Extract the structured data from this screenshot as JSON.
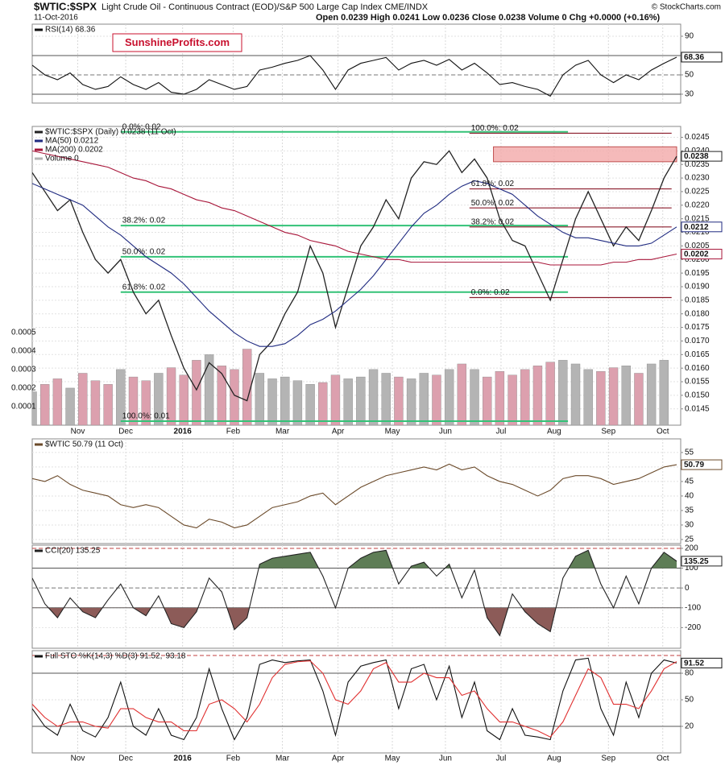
{
  "chart_data": [
    {
      "type": "line",
      "title": "$WTIC:$SPX",
      "subtitle": "Light Crude Oil - Continuous Contract (EOD)/S&P 500 Large Cap Index CME/INDX",
      "date": "11-Oct-2016",
      "quote": "Open 0.0239 High 0.0241 Low 0.0236 Close 0.0238 Volume 0 Chg +0.0000 (+0.16%)",
      "credit": "© StockCharts.com",
      "xlim": [
        0,
        51
      ],
      "xticks": [
        {
          "value": 3.6,
          "label": "Nov"
        },
        {
          "value": 7.4,
          "label": "Dec"
        },
        {
          "value": 11.9,
          "label": "2016"
        },
        {
          "value": 15.9,
          "label": "Feb"
        },
        {
          "value": 19.8,
          "label": "Mar"
        },
        {
          "value": 24.2,
          "label": "Apr"
        },
        {
          "value": 28.5,
          "label": "May"
        },
        {
          "value": 32.7,
          "label": "Jun"
        },
        {
          "value": 37.1,
          "label": "Jul"
        },
        {
          "value": 41.3,
          "label": "Aug"
        },
        {
          "value": 45.6,
          "label": "Sep"
        },
        {
          "value": 49.9,
          "label": "Oct"
        }
      ],
      "ylim": [
        0.0139,
        0.0249
      ],
      "yticks": [
        0.0145,
        {
          "value": 0.015,
          "label": "0.0150"
        },
        0.0155,
        {
          "value": 0.016,
          "label": "0.0160"
        },
        0.0165,
        {
          "value": 0.017,
          "label": "0.0170"
        },
        0.0175,
        {
          "value": 0.018,
          "label": "0.0180"
        },
        0.0185,
        {
          "value": 0.019,
          "label": "0.0190"
        },
        0.0195,
        {
          "value": 0.02,
          "label": "0.0200"
        },
        0.0205,
        {
          "value": 0.021,
          "label": "0.0210"
        },
        0.0215,
        {
          "value": 0.022,
          "label": "0.0220"
        },
        0.0225,
        {
          "value": 0.023,
          "label": "0.0230"
        },
        0.0235,
        {
          "value": 0.024,
          "label": "0.0240"
        },
        0.0245
      ],
      "y2lim": [
        0,
        0.00161
      ],
      "y2ticks": [
        0.0001,
        0.0002,
        0.0003,
        0.0004,
        0.0005
      ],
      "series": [
        {
          "name": "$WTIC:$SPX (Daily) 0.0238 (11 Oct)",
          "color": "#222222",
          "value_box": true,
          "values": [
            0.0232,
            0.0225,
            0.0218,
            0.0222,
            0.021,
            0.02,
            0.0195,
            0.02,
            0.0188,
            0.018,
            0.0185,
            0.0172,
            0.016,
            0.0152,
            0.0162,
            0.0158,
            0.015,
            0.0148,
            0.0165,
            0.017,
            0.018,
            0.0188,
            0.0205,
            0.0195,
            0.0175,
            0.019,
            0.0205,
            0.0212,
            0.0222,
            0.0215,
            0.023,
            0.0236,
            0.0235,
            0.024,
            0.0232,
            0.0237,
            0.023,
            0.0215,
            0.0207,
            0.0205,
            0.0195,
            0.0185,
            0.02,
            0.0215,
            0.0225,
            0.0215,
            0.0205,
            0.0212,
            0.0207,
            0.0218,
            0.023,
            0.0238
          ]
        },
        {
          "name": "MA(50) 0.0212",
          "color": "#1f2a80",
          "value_box": true,
          "values": [
            0.0228,
            0.0226,
            0.0224,
            0.0222,
            0.022,
            0.0216,
            0.0212,
            0.0209,
            0.0205,
            0.0201,
            0.0198,
            0.0195,
            0.0191,
            0.0186,
            0.0181,
            0.0177,
            0.0173,
            0.017,
            0.0168,
            0.0168,
            0.0169,
            0.0172,
            0.0176,
            0.0178,
            0.0181,
            0.0185,
            0.0189,
            0.0194,
            0.02,
            0.0206,
            0.0212,
            0.0217,
            0.022,
            0.0224,
            0.0227,
            0.0229,
            0.0228,
            0.0226,
            0.0224,
            0.022,
            0.0216,
            0.0213,
            0.021,
            0.0208,
            0.0208,
            0.0207,
            0.0206,
            0.0205,
            0.0205,
            0.0206,
            0.0209,
            0.0212
          ]
        },
        {
          "name": "MA(200) 0.0202",
          "color": "#a8163a",
          "value_box": true,
          "values": [
            0.024,
            0.0239,
            0.0238,
            0.0237,
            0.0236,
            0.0235,
            0.0234,
            0.0232,
            0.023,
            0.0229,
            0.0227,
            0.0226,
            0.0224,
            0.0222,
            0.0221,
            0.0219,
            0.0218,
            0.0216,
            0.0214,
            0.0212,
            0.021,
            0.0209,
            0.0207,
            0.0206,
            0.0205,
            0.0203,
            0.0202,
            0.0201,
            0.02,
            0.02,
            0.0199,
            0.0199,
            0.0199,
            0.0199,
            0.0199,
            0.0199,
            0.0199,
            0.0199,
            0.0199,
            0.0199,
            0.0199,
            0.0198,
            0.0198,
            0.0198,
            0.0198,
            0.0198,
            0.0199,
            0.0199,
            0.02,
            0.02,
            0.0201,
            0.0202
          ]
        },
        {
          "name": "Volume 0",
          "color": "#b4b4b4",
          "down_color": "#dca0ae",
          "axis": "y2",
          "values": [
            0.00018,
            0.00022,
            0.00025,
            0.0002,
            0.00028,
            0.00024,
            0.00022,
            0.0003,
            0.00026,
            0.00024,
            0.00028,
            0.00031,
            0.00027,
            0.00035,
            0.00038,
            0.00032,
            0.0003,
            0.00041,
            0.00028,
            0.00025,
            0.00026,
            0.00024,
            0.00022,
            0.00023,
            0.00027,
            0.00025,
            0.00026,
            0.0003,
            0.00028,
            0.00026,
            0.00025,
            0.00028,
            0.00027,
            0.0003,
            0.00033,
            0.0003,
            0.00026,
            0.00029,
            0.00027,
            0.0003,
            0.00032,
            0.00034,
            0.00035,
            0.00033,
            0.0003,
            0.00029,
            0.00031,
            0.00032,
            0.00028,
            0.00033,
            0.00035,
            0
          ]
        }
      ],
      "zones": [
        {
          "from": 36.5,
          "to": 51,
          "low": 0.0236,
          "high": 0.02415,
          "color": "#f2a9a9"
        }
      ],
      "fib_groups": [
        {
          "color": "#33c277",
          "from": 7,
          "to": 42.4,
          "levels": [
            {
              "label": "0.0%: 0.02",
              "value": 0.0247
            },
            {
              "label": "38.2%: 0.02",
              "value": 0.02125
            },
            {
              "label": "50.0%: 0.02",
              "value": 0.0201
            },
            {
              "label": "61.8%: 0.02",
              "value": 0.0188
            },
            {
              "label": "100.0%: 0.01",
              "value": 0.01405
            }
          ]
        },
        {
          "color": "#8a1a2a",
          "from": 34.6,
          "to": 50.6,
          "levels": [
            {
              "label": "100.0%: 0.02",
              "value": 0.02465
            },
            {
              "label": "61.8%: 0.02",
              "value": 0.0226
            },
            {
              "label": "50.0%: 0.02",
              "value": 0.0219
            },
            {
              "label": "38.2%: 0.02",
              "value": 0.0212
            },
            {
              "label": "0.0%: 0.02",
              "value": 0.0186
            }
          ]
        }
      ]
    },
    {
      "type": "line",
      "title": "RSI(14) 68.36",
      "watermark": "SunshineProfits.com",
      "ylim": [
        20.8,
        102.5
      ],
      "yticks": [
        30,
        50,
        70,
        90
      ],
      "ref_lines": [
        {
          "value": 70,
          "dash": false,
          "color": "#555555"
        },
        {
          "value": 50,
          "dash": true,
          "color": "#777777"
        },
        {
          "value": 30,
          "dash": false,
          "color": "#555555"
        }
      ],
      "series": [
        {
          "color": "#111111",
          "value_box": true,
          "values": [
            60,
            50,
            45,
            52,
            40,
            35,
            38,
            48,
            40,
            35,
            42,
            32,
            30,
            35,
            45,
            40,
            35,
            38,
            55,
            58,
            62,
            65,
            70,
            55,
            35,
            55,
            62,
            65,
            68,
            55,
            62,
            65,
            60,
            66,
            55,
            62,
            52,
            40,
            42,
            38,
            35,
            28,
            50,
            60,
            65,
            50,
            42,
            50,
            45,
            55,
            62,
            68.36
          ]
        }
      ]
    },
    {
      "type": "line",
      "title": "$WTIC 50.79 (11 Oct)",
      "ylim": [
        23.6,
        59.7
      ],
      "yticks": [
        25,
        30,
        35,
        40,
        45,
        50,
        55
      ],
      "series": [
        {
          "color": "#6b4a2a",
          "value_box": true,
          "values": [
            46,
            45,
            47,
            44,
            42,
            41,
            40,
            37,
            36,
            37,
            36,
            33,
            30,
            29,
            32,
            31,
            29,
            30,
            33,
            36,
            37,
            38,
            40,
            41,
            37,
            40,
            43,
            45,
            47,
            48,
            49,
            50,
            49,
            51,
            49,
            50,
            47,
            45,
            44,
            42,
            40,
            42,
            46,
            47,
            47,
            46,
            44,
            45,
            46,
            48,
            50,
            50.79
          ]
        }
      ]
    },
    {
      "type": "line",
      "title": "CCI(20) 135.25",
      "ylim": [
        -304,
        216
      ],
      "yticks": [
        -200,
        -100,
        0,
        100,
        200
      ],
      "ref_lines": [
        {
          "value": 200,
          "dash": true,
          "color": "#c04040"
        },
        {
          "value": 100,
          "dash": false,
          "color": "#555555"
        },
        {
          "value": 0,
          "dash": true,
          "color": "#777777"
        },
        {
          "value": -100,
          "dash": false,
          "color": "#555555"
        }
      ],
      "fills": [
        {
          "ref": 1,
          "side": "above",
          "color": "#5e7d56"
        },
        {
          "ref": 3,
          "side": "below",
          "color": "#8c5b58"
        }
      ],
      "series": [
        {
          "color": "#222222",
          "value_box": true,
          "values": [
            50,
            -80,
            -150,
            -50,
            -120,
            -150,
            -60,
            20,
            -100,
            -140,
            -40,
            -180,
            -200,
            -120,
            50,
            -20,
            -210,
            -150,
            120,
            150,
            160,
            170,
            180,
            60,
            -100,
            100,
            150,
            180,
            190,
            20,
            110,
            130,
            60,
            120,
            -50,
            90,
            -150,
            -240,
            -30,
            -120,
            -180,
            -220,
            50,
            160,
            190,
            20,
            -100,
            60,
            -80,
            100,
            180,
            135.25
          ]
        }
      ]
    },
    {
      "type": "line",
      "title": "Full STO %K(14,3) %D(3) 91.52,",
      "ylim": [
        -10,
        105.5
      ],
      "yticks": [
        20,
        50,
        80
      ],
      "ref_lines": [
        {
          "value": 100,
          "dash": true,
          "color": "#c04040"
        },
        {
          "value": 80,
          "dash": false,
          "color": "#555555"
        },
        {
          "value": 20,
          "dash": false,
          "color": "#555555"
        }
      ],
      "series": [
        {
          "color": "#111111",
          "value_box": true,
          "values": [
            40,
            20,
            10,
            45,
            15,
            8,
            30,
            70,
            20,
            10,
            40,
            10,
            5,
            30,
            85,
            40,
            5,
            30,
            90,
            95,
            92,
            94,
            95,
            60,
            10,
            70,
            88,
            92,
            95,
            40,
            85,
            90,
            50,
            88,
            30,
            70,
            15,
            5,
            40,
            10,
            8,
            5,
            60,
            95,
            97,
            40,
            10,
            70,
            30,
            80,
            95,
            91.52
          ]
        },
        {
          "color": "#e03030",
          "values": [
            45,
            30,
            20,
            25,
            25,
            20,
            18,
            40,
            40,
            30,
            25,
            25,
            15,
            15,
            45,
            50,
            40,
            25,
            45,
            75,
            90,
            93,
            94,
            80,
            50,
            45,
            60,
            85,
            92,
            70,
            70,
            80,
            75,
            75,
            55,
            60,
            40,
            25,
            25,
            20,
            15,
            8,
            25,
            55,
            85,
            75,
            45,
            45,
            40,
            60,
            85,
            93.18
          ]
        }
      ]
    }
  ]
}
